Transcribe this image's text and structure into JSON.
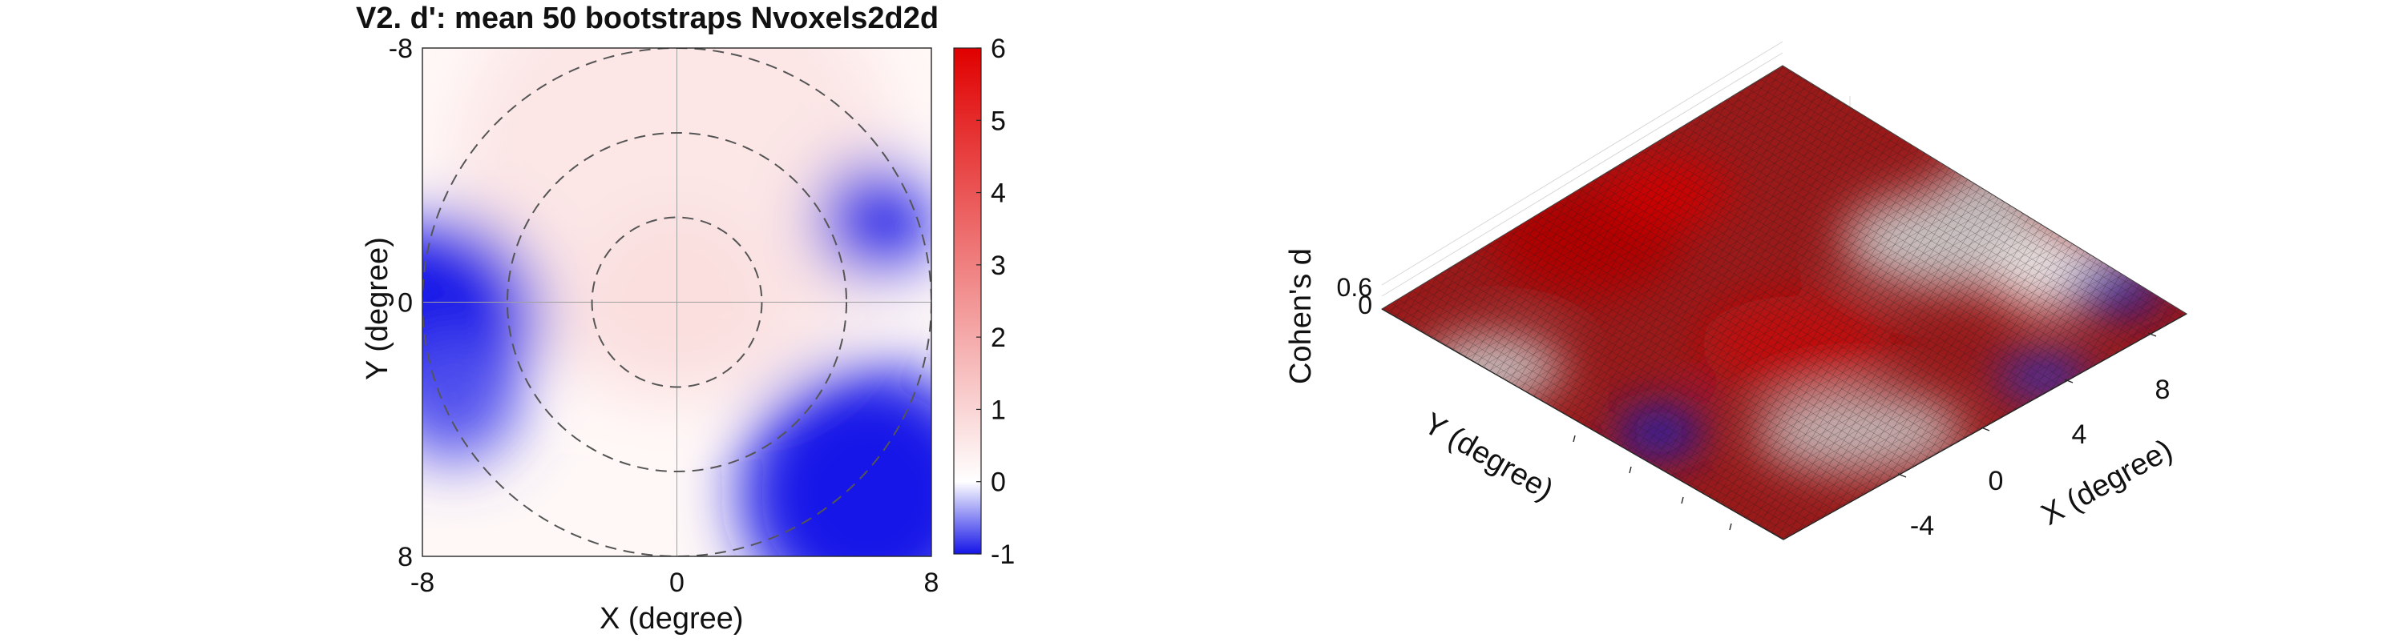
{
  "chart_data": [
    {
      "type": "heatmap",
      "title": "V2. d': mean 50 bootstraps Nvoxels2d2d",
      "xlabel": "X (degree)",
      "ylabel": "Y (degree)",
      "xlim": [
        -8,
        8
      ],
      "ylim": [
        -8,
        8
      ],
      "y_direction": "reversed",
      "x_ticks": [
        "-8",
        "0",
        "8"
      ],
      "y_ticks": [
        "-8",
        "0",
        "8"
      ],
      "colorbar": {
        "ticks": [
          "-1",
          "0",
          "1",
          "2",
          "3",
          "4",
          "5",
          "6"
        ],
        "range": [
          -1,
          6
        ],
        "colors": {
          "negative": "#1414e8",
          "zero": "#ffffff",
          "positive": "#e00000"
        }
      },
      "rings_radius_deg": [
        2.67,
        5.33,
        8
      ],
      "crosshair": true,
      "regions": [
        {
          "x": 0,
          "y": -4,
          "r": 7,
          "value": 0.2
        },
        {
          "x": -7.5,
          "y": 0.5,
          "r": 3.2,
          "value": -0.45
        },
        {
          "x": 6.2,
          "y": -2.6,
          "r": 1.8,
          "value": -0.4
        },
        {
          "x": 6,
          "y": 6,
          "r": 4,
          "value": -0.5
        },
        {
          "x": -7,
          "y": 3,
          "r": 2,
          "value": -0.25
        },
        {
          "x": 0,
          "y": 0,
          "r": 3,
          "value": 0.25
        }
      ]
    },
    {
      "type": "surface",
      "xlabel": "X (degree)",
      "ylabel": "Y (degree)",
      "zlabel": "Cohen's d",
      "x_ticks": [
        "-4",
        "0",
        "4",
        "8"
      ],
      "z_ticks": [
        "0",
        "0.6"
      ],
      "grid": true
    }
  ]
}
